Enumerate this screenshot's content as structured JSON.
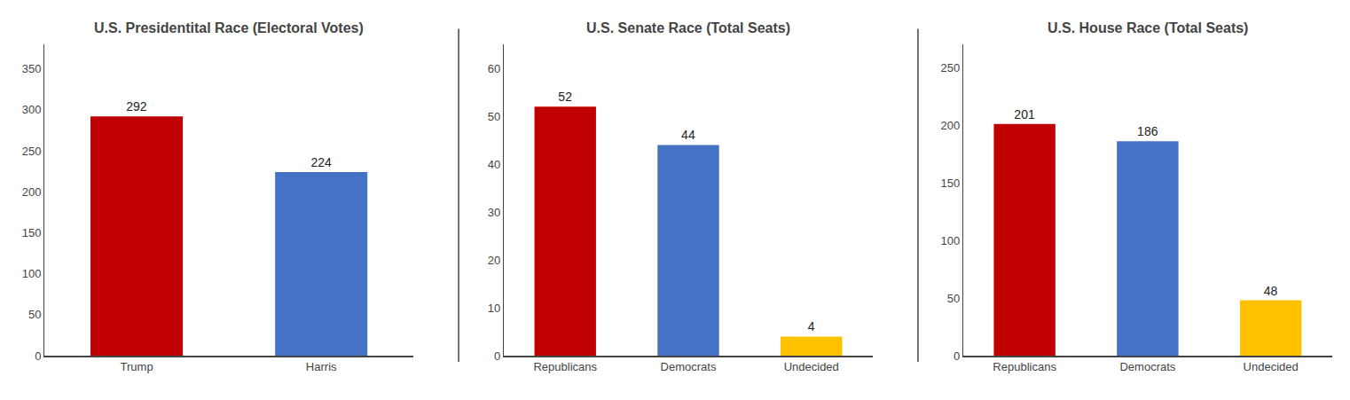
{
  "chart_data": [
    {
      "type": "bar",
      "title": "U.S. Presidentital Race (Electoral Votes)",
      "categories": [
        "Trump",
        "Harris"
      ],
      "values": [
        292,
        224
      ],
      "colors": [
        "#c00000",
        "#4472c4"
      ],
      "ylim": [
        0,
        380
      ],
      "yticks": [
        0,
        50,
        100,
        150,
        200,
        250,
        300,
        350
      ],
      "data_labels": true,
      "grid": false
    },
    {
      "type": "bar",
      "title": "U.S. Senate Race (Total Seats)",
      "categories": [
        "Republicans",
        "Democrats",
        "Undecided"
      ],
      "values": [
        52,
        44,
        4
      ],
      "colors": [
        "#c00000",
        "#4472c4",
        "#ffc000"
      ],
      "ylim": [
        0,
        65
      ],
      "yticks": [
        0,
        10,
        20,
        30,
        40,
        50,
        60
      ],
      "data_labels": true,
      "grid": false
    },
    {
      "type": "bar",
      "title": "U.S. House Race (Total Seats)",
      "categories": [
        "Republicans",
        "Democrats",
        "Undecided"
      ],
      "values": [
        201,
        186,
        48
      ],
      "colors": [
        "#c00000",
        "#4472c4",
        "#ffc000"
      ],
      "ylim": [
        0,
        270
      ],
      "yticks": [
        0,
        50,
        100,
        150,
        200,
        250
      ],
      "data_labels": true,
      "grid": false
    }
  ]
}
